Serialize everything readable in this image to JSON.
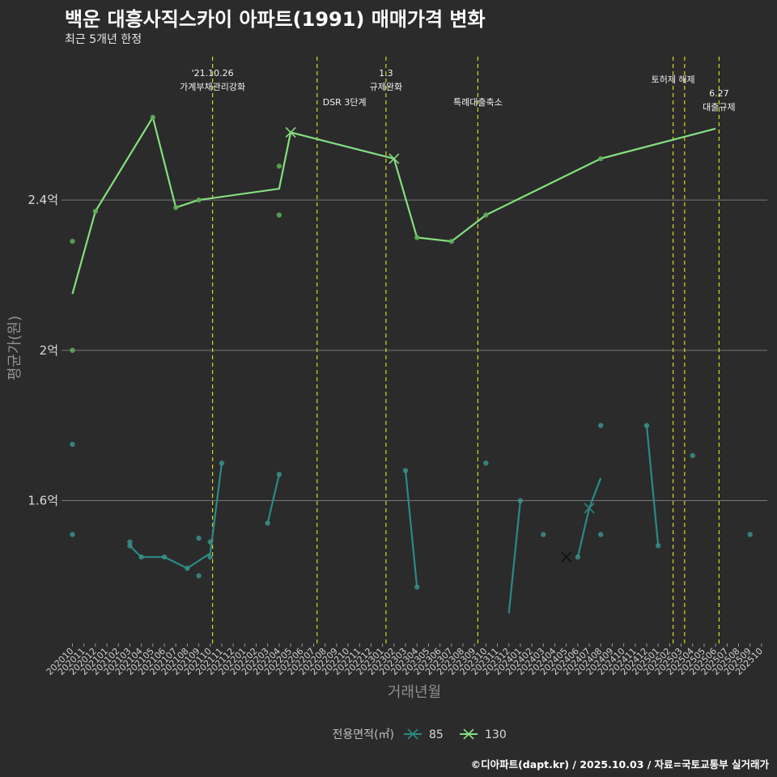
{
  "title": "백운 대흥사직스카이 아파트(1991) 매매가격 변화",
  "subtitle": "최근 5개년 한정",
  "caption": "©디아파트(dapt.kr) / 2025.10.03 / 자료=국토교통부 실거래가",
  "colors": {
    "background": "#2b2b2b",
    "grid": "#777777",
    "series85": "#2a8a86",
    "series130": "#86de80",
    "vline": "#d6d625",
    "point85": "#3a8f88",
    "point130": "#5fae5a"
  },
  "chart_data": {
    "type": "line",
    "title": "백운 대흥사직스카이 아파트(1991) 매매가격 변화",
    "xlabel": "거래년월",
    "ylabel": "평균가(원)",
    "x_start": "2020-10",
    "months_count": 61,
    "ylim": [
      1.22,
      2.79
    ],
    "y_ticks": [
      {
        "v": 1.6,
        "label": "1.6억"
      },
      {
        "v": 2.0,
        "label": "2억"
      },
      {
        "v": 2.4,
        "label": "2.4억"
      }
    ],
    "legend": {
      "title": "전용면적(㎡)",
      "entries": [
        "85",
        "130"
      ],
      "position": "bottom"
    },
    "series": [
      {
        "name": "85",
        "color": "#2a8a86",
        "segments": [
          [
            [
              5,
              1.48
            ],
            [
              6,
              1.45
            ],
            [
              8,
              1.45
            ],
            [
              10,
              1.42
            ],
            [
              12,
              1.46
            ],
            [
              13,
              1.7
            ]
          ],
          [
            [
              17,
              1.54
            ],
            [
              18,
              1.67
            ]
          ],
          [
            [
              29,
              1.68
            ],
            [
              30,
              1.37
            ]
          ],
          [
            [
              38,
              1.3
            ],
            [
              39,
              1.6
            ]
          ],
          [
            [
              44,
              1.45
            ],
            [
              45,
              1.58
            ],
            [
              46,
              1.66
            ]
          ],
          [
            [
              50,
              1.8
            ],
            [
              51,
              1.48
            ]
          ]
        ],
        "points": [
          [
            0,
            1.75
          ],
          [
            0,
            1.51
          ],
          [
            5,
            1.49
          ],
          [
            5,
            1.48
          ],
          [
            6,
            1.45
          ],
          [
            8,
            1.45
          ],
          [
            10,
            1.42
          ],
          [
            11,
            1.4
          ],
          [
            11,
            1.5
          ],
          [
            12,
            1.45
          ],
          [
            12,
            1.49
          ],
          [
            13,
            1.7
          ],
          [
            17,
            1.54
          ],
          [
            18,
            1.67
          ],
          [
            29,
            1.68
          ],
          [
            30,
            1.37
          ],
          [
            36,
            1.7
          ],
          [
            39,
            1.6
          ],
          [
            41,
            1.51
          ],
          [
            44,
            1.45
          ],
          [
            46,
            1.8
          ],
          [
            46,
            1.51
          ],
          [
            50,
            1.8
          ],
          [
            51,
            1.48
          ],
          [
            54,
            1.72
          ],
          [
            59,
            1.51
          ]
        ],
        "markers_x": [
          [
            45,
            1.58
          ]
        ],
        "dark_marker": [
          [
            43,
            1.45
          ]
        ]
      },
      {
        "name": "130",
        "color": "#86de80",
        "segments": [
          [
            [
              0,
              2.15
            ],
            [
              2,
              2.37
            ],
            [
              7,
              2.62
            ],
            [
              9,
              2.38
            ],
            [
              11,
              2.4
            ],
            [
              18,
              2.43
            ],
            [
              19,
              2.58
            ],
            [
              28,
              2.51
            ],
            [
              30,
              2.3
            ],
            [
              33,
              2.29
            ],
            [
              36,
              2.36
            ],
            [
              46,
              2.51
            ],
            [
              56,
              2.59
            ]
          ]
        ],
        "points": [
          [
            0,
            2.29
          ],
          [
            0,
            2.0
          ],
          [
            2,
            2.37
          ],
          [
            7,
            2.62
          ],
          [
            9,
            2.38
          ],
          [
            11,
            2.4
          ],
          [
            18,
            2.49
          ],
          [
            18,
            2.36
          ],
          [
            30,
            2.3
          ],
          [
            33,
            2.29
          ],
          [
            36,
            2.36
          ],
          [
            46,
            2.51
          ]
        ],
        "markers_x": [
          [
            19,
            2.58
          ],
          [
            28,
            2.51
          ]
        ]
      }
    ],
    "vlines": [
      {
        "x": 12.2,
        "lines": [
          "'21.10.26",
          "가계부채관리강화"
        ]
      },
      {
        "x": 21.3,
        "lines": [
          "DSR 3단계"
        ]
      },
      {
        "x": 27.3,
        "lines": [
          "1.3",
          "규제완화"
        ]
      },
      {
        "x": 35.3,
        "lines": [
          "특례대출축소"
        ]
      },
      {
        "x": 52.3,
        "lines": [
          "토허제 해제"
        ]
      },
      {
        "x": 53.3,
        "lines": []
      },
      {
        "x": 56.3,
        "lines": [
          "6.27",
          "대출규제"
        ]
      }
    ]
  }
}
